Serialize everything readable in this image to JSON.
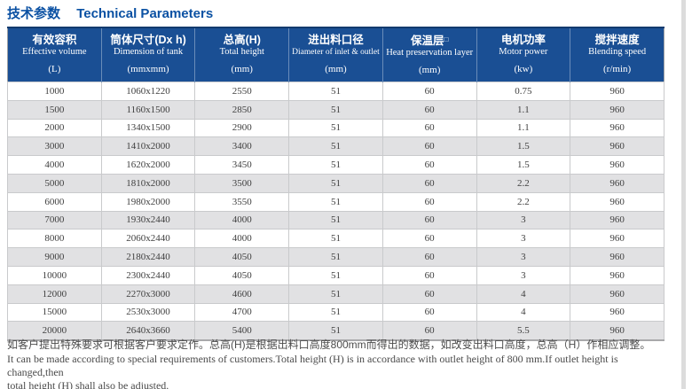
{
  "title": {
    "cn": "技术参数",
    "en": "Technical Parameters"
  },
  "colors": {
    "header_bg": "#1a4f94",
    "header_text": "#ffffff",
    "title": "#0b51a3",
    "row_alt": "#e1e1e3",
    "border_dark": "#133a6e"
  },
  "table": {
    "columns": [
      {
        "cn": "有效容积",
        "en": "Effective volume",
        "unit": "(L)"
      },
      {
        "cn": "筒体尺寸(Dx h)",
        "en": "Dimension of tank",
        "unit": "(mmxmm)"
      },
      {
        "cn": "总高(H)",
        "en": "Total height",
        "unit": "(mm)"
      },
      {
        "cn": "进出料口径",
        "en": "Diameter of inlet & outlet",
        "unit": "(mm)"
      },
      {
        "cn": "保温层",
        "cn_suffix": "□",
        "en": "Heat preservation layer",
        "unit": "(mm)"
      },
      {
        "cn": "电机功率",
        "en": "Motor power",
        "unit": "(kw)"
      },
      {
        "cn": "搅拌速度",
        "en": "Blending speed",
        "unit": "(r/min)"
      }
    ],
    "rows": [
      [
        "1000",
        "1060x1220",
        "2550",
        "51",
        "60",
        "0.75",
        "960"
      ],
      [
        "1500",
        "1160x1500",
        "2850",
        "51",
        "60",
        "1.1",
        "960"
      ],
      [
        "2000",
        "1340x1500",
        "2900",
        "51",
        "60",
        "1.1",
        "960"
      ],
      [
        "3000",
        "1410x2000",
        "3400",
        "51",
        "60",
        "1.5",
        "960"
      ],
      [
        "4000",
        "1620x2000",
        "3450",
        "51",
        "60",
        "1.5",
        "960"
      ],
      [
        "5000",
        "1810x2000",
        "3500",
        "51",
        "60",
        "2.2",
        "960"
      ],
      [
        "6000",
        "1980x2000",
        "3550",
        "51",
        "60",
        "2.2",
        "960"
      ],
      [
        "7000",
        "1930x2440",
        "4000",
        "51",
        "60",
        "3",
        "960"
      ],
      [
        "8000",
        "2060x2440",
        "4000",
        "51",
        "60",
        "3",
        "960"
      ],
      [
        "9000",
        "2180x2440",
        "4050",
        "51",
        "60",
        "3",
        "960"
      ],
      [
        "10000",
        "2300x2440",
        "4050",
        "51",
        "60",
        "3",
        "960"
      ],
      [
        "12000",
        "2270x3000",
        "4600",
        "51",
        "60",
        "4",
        "960"
      ],
      [
        "15000",
        "2530x3000",
        "4700",
        "51",
        "60",
        "4",
        "960"
      ],
      [
        "20000",
        "2640x3660",
        "5400",
        "51",
        "60",
        "5.5",
        "960"
      ]
    ]
  },
  "notes": {
    "cn": "如客户提出特殊要求可根据客户要求定作。总高(H)是根据出料口高度800mm而得出的数据，如改变出料口高度，总高（H）作相应调整。",
    "en_line1": "It can be made according to special requirements of customers.Total height (H) is in accordance with outlet height of 800 mm.If outlet height is changed,then",
    "en_line2": "total height (H) shall also be adjusted."
  }
}
